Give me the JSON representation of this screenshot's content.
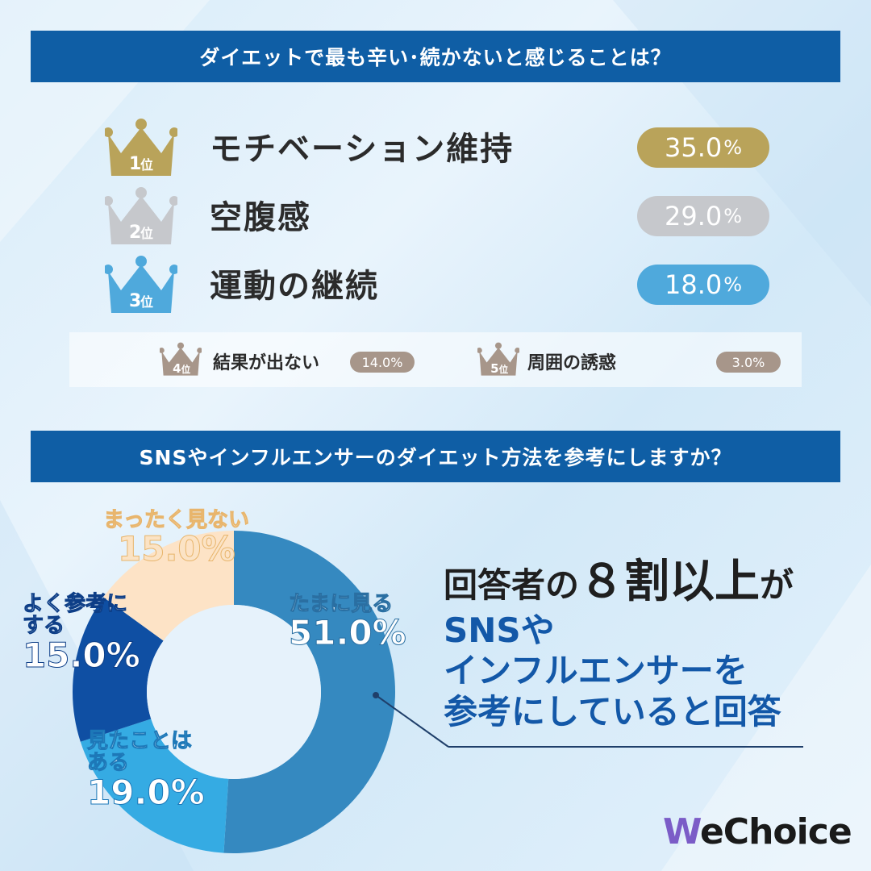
{
  "q1": {
    "title": "ダイエットで最も辛い･続かないと感じることは？",
    "top_ranks": [
      {
        "rank": "1",
        "rank_suffix": "位",
        "label": "モチベーション維持",
        "value": "35.0",
        "unit": "%",
        "color": "#b9a35a"
      },
      {
        "rank": "2",
        "rank_suffix": "位",
        "label": "空腹感",
        "value": "29.0",
        "unit": "%",
        "color": "#c6c8cc"
      },
      {
        "rank": "3",
        "rank_suffix": "位",
        "label": "運動の継続",
        "value": "18.0",
        "unit": "%",
        "color": "#4fa9dc"
      }
    ],
    "minor_ranks": [
      {
        "rank": "4",
        "rank_suffix": "位",
        "label": "結果が出ない",
        "value": "14.0%",
        "color": "#a7968a"
      },
      {
        "rank": "5",
        "rank_suffix": "位",
        "label": "周囲の誘惑",
        "value": "3.0%",
        "color": "#a7968a"
      }
    ]
  },
  "q2": {
    "title": "SNSやインフルエンサーのダイエット方法を参考にしますか？"
  },
  "chart_data": {
    "type": "pie",
    "title": "SNSやインフルエンサーのダイエット方法を参考にしますか？",
    "categories": [
      "たまに見る",
      "見たことはある",
      "よく参考にする",
      "まったく見ない"
    ],
    "values": [
      51.0,
      19.0,
      15.0,
      15.0
    ],
    "colors": [
      "#3589c0",
      "#35abe3",
      "#0f4fa3",
      "#fde3c6"
    ]
  },
  "donut_labels": {
    "occasionally_name": "たまに見る",
    "occasionally_value": "51.0%",
    "seen_name_1": "見たことは",
    "seen_name_2": "ある",
    "seen_value": "19.0%",
    "often_name_1": "よく参考に",
    "often_name_2": "する",
    "often_value": "15.0%",
    "never_name": "まったく見ない",
    "never_value": "15.0%"
  },
  "callout": {
    "line1_a": "回答者の",
    "line1_b": "８割以上",
    "line1_c": "が",
    "line2": "SNSや",
    "line3": "インフルエンサーを",
    "line4": "参考にしていると回答"
  },
  "brand": {
    "logo_w": "W",
    "logo_rest": "eChoice"
  }
}
